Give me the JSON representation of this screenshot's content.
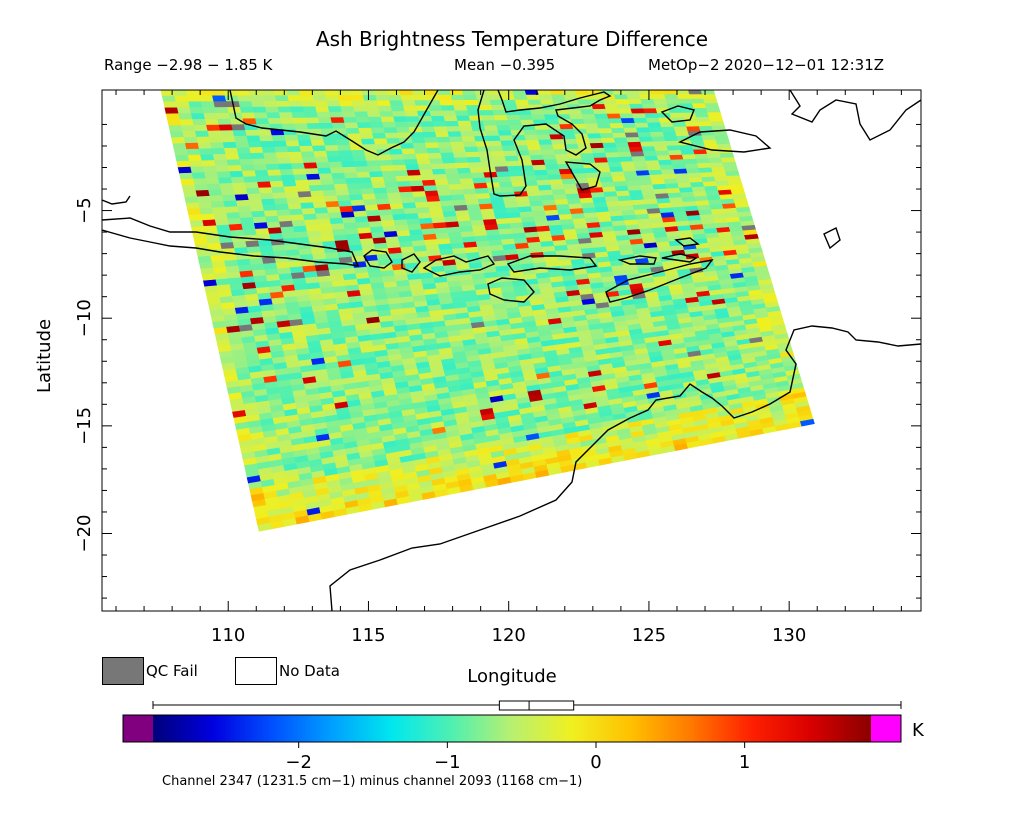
{
  "header": {
    "title": "Ash Brightness Temperature Difference",
    "range": "Range −2.98 − 1.85 K",
    "mean": "Mean −0.395",
    "satellite_time": "MetOp−2 2020−12−01 12:31Z"
  },
  "legend": {
    "qc_fail": "QC Fail",
    "no_data": "No Data",
    "qc_color": "#777777"
  },
  "colorbar": {
    "unit": "K",
    "channel_note": "Channel 2347 (1231.5 cm−1) minus channel 2093 (1168 cm−1)",
    "min": -2.98,
    "max": 1.85,
    "ticks": [
      {
        "value": -2,
        "label": "−2"
      },
      {
        "value": -1,
        "label": "−1"
      },
      {
        "value": 0,
        "label": "0"
      },
      {
        "value": 1,
        "label": "1"
      }
    ],
    "stops": [
      "#00007a",
      "#0000e0",
      "#0050ff",
      "#00a0ff",
      "#00e8ee",
      "#50f0b0",
      "#b8f070",
      "#f0f020",
      "#ffc000",
      "#ff7800",
      "#ff2000",
      "#d80000",
      "#8a0000"
    ],
    "under_color": "#800080",
    "over_color": "#ff00ff",
    "box_q1": -0.65,
    "box_median": -0.45,
    "box_q3": -0.15
  },
  "chart_data": {
    "type": "heatmap",
    "title": "Ash Brightness Temperature Difference",
    "xlabel": "Longitude",
    "ylabel": "Latitude",
    "xlim": [
      105.5,
      134.7
    ],
    "ylim": [
      -23.6,
      0.6
    ],
    "x_ticks": [
      {
        "value": 110,
        "label": "110"
      },
      {
        "value": 115,
        "label": "115"
      },
      {
        "value": 120,
        "label": "120"
      },
      {
        "value": 125,
        "label": "125"
      },
      {
        "value": 130,
        "label": "130"
      }
    ],
    "y_ticks": [
      {
        "value": -5,
        "label": "−5"
      },
      {
        "value": -10,
        "label": "−10"
      },
      {
        "value": -15,
        "label": "−15"
      },
      {
        "value": -20,
        "label": "−20"
      }
    ],
    "grid": false,
    "swath_corners_lonlat": [
      [
        107.6,
        0.6
      ],
      [
        127.3,
        0.6
      ],
      [
        130.9,
        -14.9
      ],
      [
        111.1,
        -19.9
      ]
    ],
    "range_k": [
      -2.98,
      1.85
    ],
    "mean_k": -0.395
  }
}
